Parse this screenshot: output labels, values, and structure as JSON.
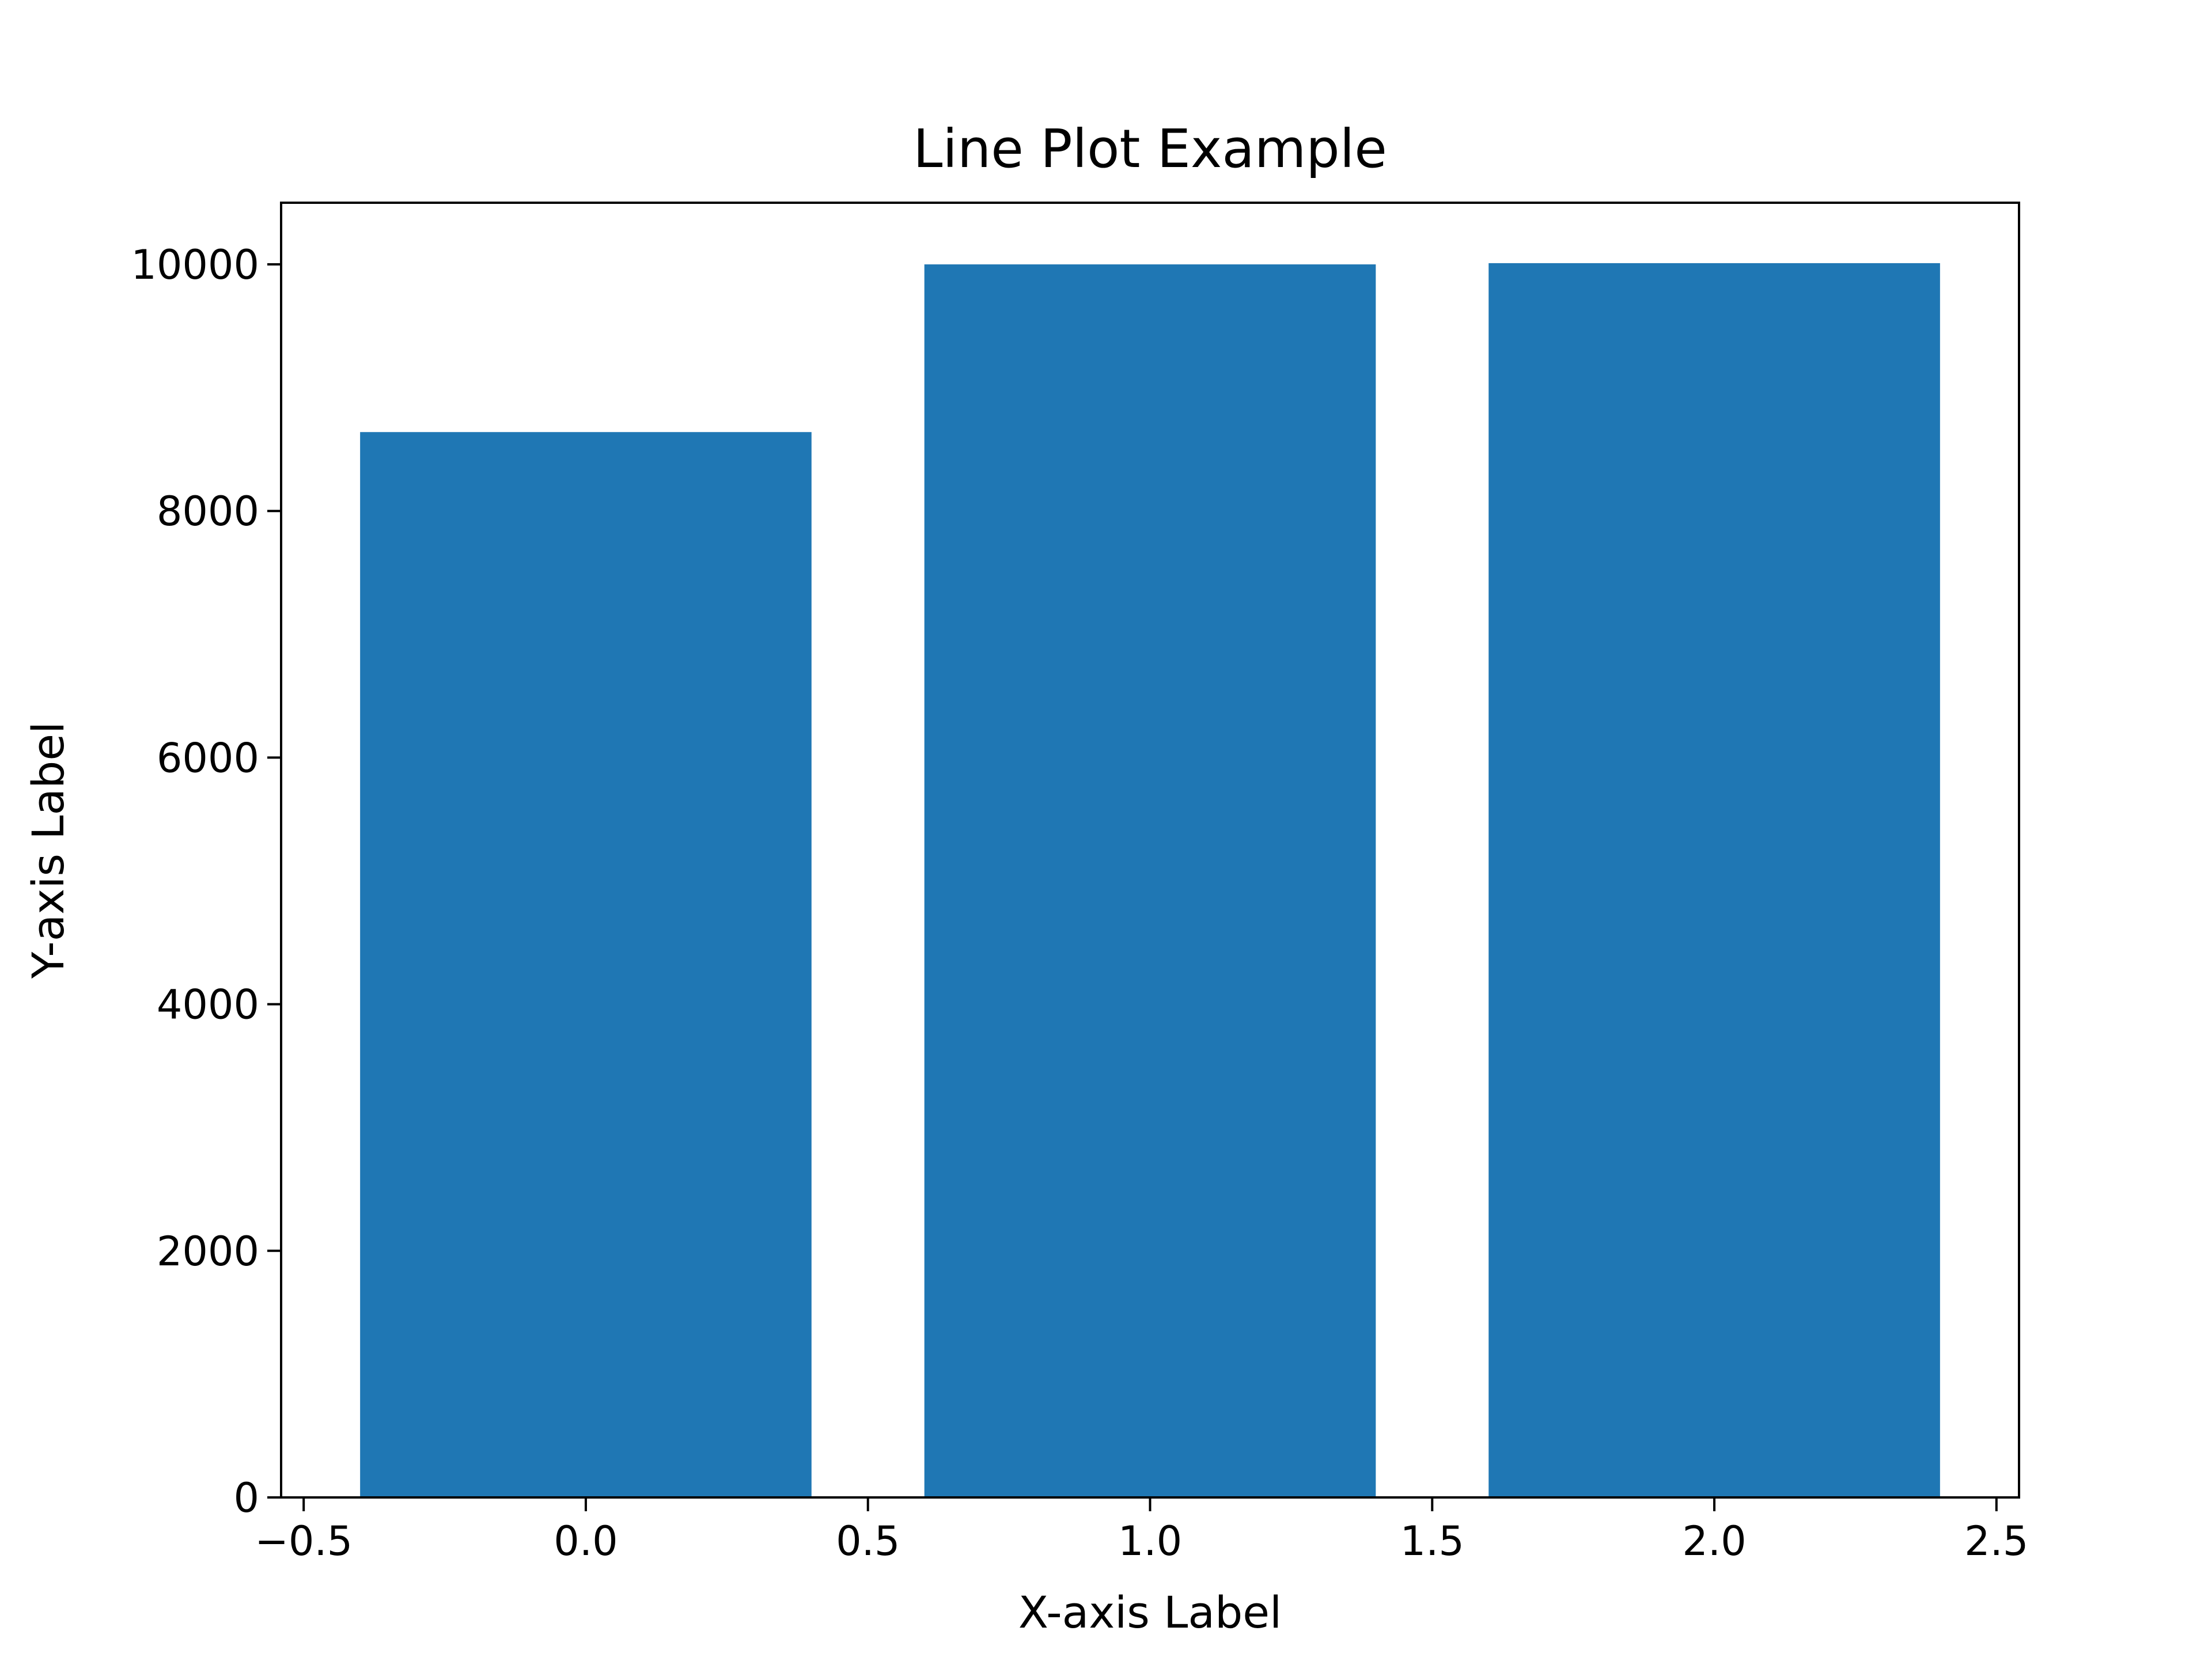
{
  "chart_data": {
    "type": "bar",
    "title": "Line Plot Example",
    "xlabel": "X-axis Label",
    "ylabel": "Y-axis Label",
    "x": [
      0,
      1,
      2
    ],
    "values": [
      8640,
      10000,
      10010
    ],
    "bar_width": 0.8,
    "xlim": [
      -0.54,
      2.54
    ],
    "ylim": [
      0,
      10500
    ],
    "xticks": [
      -0.5,
      0.0,
      0.5,
      1.0,
      1.5,
      2.0,
      2.5
    ],
    "xtick_labels": [
      "−0.5",
      "0.0",
      "0.5",
      "1.0",
      "1.5",
      "2.0",
      "2.5"
    ],
    "yticks": [
      0,
      2000,
      4000,
      6000,
      8000,
      10000
    ],
    "ytick_labels": [
      "0",
      "2000",
      "4000",
      "6000",
      "8000",
      "10000"
    ],
    "grid": false,
    "legend": "none",
    "colors": {
      "bar": "#1f77b4",
      "axes": "#000000",
      "background": "#ffffff"
    }
  }
}
